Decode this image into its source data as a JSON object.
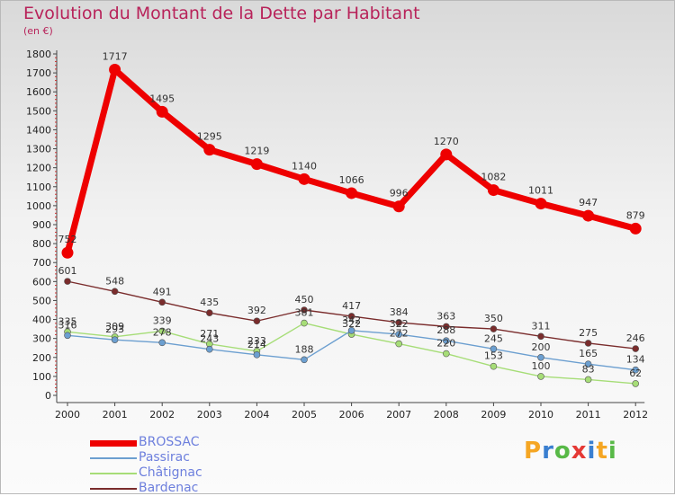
{
  "title": "Evolution du Montant de la Dette par Habitant",
  "subtitle": "(en €)",
  "logo": {
    "letters": [
      "P",
      "r",
      "o",
      "x",
      "i",
      "t",
      "i"
    ],
    "colors": [
      "#f5a623",
      "#3a7fd0",
      "#58b947",
      "#e53935",
      "#3a7fd0",
      "#f5a623",
      "#58b947"
    ]
  },
  "chart_data": {
    "type": "line",
    "x": [
      "2000",
      "2001",
      "2002",
      "2003",
      "2004",
      "2005",
      "2006",
      "2007",
      "2008",
      "2009",
      "2010",
      "2011",
      "2012"
    ],
    "ylim": [
      0,
      1800
    ],
    "yticks": [
      "0",
      "100",
      "200",
      "300",
      "400",
      "500",
      "600",
      "700",
      "800",
      "900",
      "1000",
      "1100",
      "1200",
      "1300",
      "1400",
      "1500",
      "1600",
      "1700",
      "1800"
    ],
    "grid": false,
    "legend_position": "bottom-left",
    "series": [
      {
        "name": "BROSSAC",
        "color": "#ee0000",
        "values": [
          752,
          1717,
          1495,
          1295,
          1219,
          1140,
          1066,
          996,
          1270,
          1082,
          1011,
          947,
          879
        ],
        "labels": [
          "752",
          "1717",
          "1495",
          "1295",
          "1219",
          "1140",
          "1066",
          "996",
          "1270",
          "1082",
          "1011",
          "947",
          "879"
        ]
      },
      {
        "name": "Passirac",
        "color": "#6c9fd0",
        "values": [
          316,
          293,
          278,
          243,
          214,
          188,
          342,
          322,
          288,
          245,
          200,
          165,
          134
        ],
        "labels": [
          "316",
          "293",
          "278",
          "243",
          "214",
          "188",
          "342",
          "322",
          "288",
          "245",
          "200",
          "165",
          "134"
        ]
      },
      {
        "name": "Châtignac",
        "color": "#a6dd77",
        "values": [
          335,
          309,
          339,
          271,
          233,
          381,
          322,
          272,
          220,
          153,
          100,
          83,
          62
        ],
        "labels": [
          "335",
          "309",
          "339",
          "271",
          "233",
          "381",
          "322",
          "272",
          "220",
          "153",
          "100",
          "83",
          "62"
        ]
      },
      {
        "name": "Bardenac",
        "color": "#7a2c2c",
        "values": [
          601,
          548,
          491,
          435,
          392,
          450,
          417,
          384,
          363,
          350,
          311,
          275,
          246
        ],
        "labels": [
          "601",
          "548",
          "491",
          "435",
          "392",
          "450",
          "417",
          "384",
          "363",
          "350",
          "311",
          "275",
          "246"
        ]
      }
    ]
  }
}
